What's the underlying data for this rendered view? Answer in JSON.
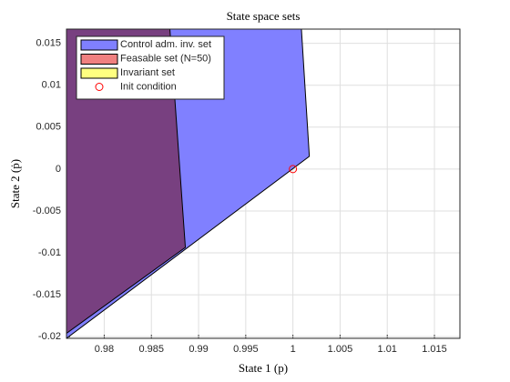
{
  "chart_data": {
    "type": "polygon",
    "title": "State space sets",
    "xlabel": "State 1 (p)",
    "ylabel": "State 2 (ṗ)",
    "xlim": [
      0.976,
      1.0177
    ],
    "ylim": [
      -0.0202,
      0.0167
    ],
    "xticks": [
      0.98,
      0.985,
      0.99,
      0.995,
      1,
      1.005,
      1.01,
      1.015
    ],
    "yticks": [
      -0.02,
      -0.015,
      -0.01,
      -0.005,
      0,
      0.005,
      0.01,
      0.015
    ],
    "grid": true,
    "legend": "upper left",
    "series": [
      {
        "name": "Control adm. inv. set",
        "color": "#8080ff",
        "x": [
          0.976,
          1.0009,
          1.00174,
          0.976
        ],
        "y": [
          0.0167,
          0.0167,
          0.00152,
          -0.0202
        ]
      },
      {
        "name": "Feasable set (N=50)",
        "color": "#f08080",
        "x": [
          0.976,
          0.98696,
          0.9886,
          0.976
        ],
        "y": [
          0.0167,
          0.0167,
          -0.00935,
          -0.0196
        ]
      },
      {
        "name": "Invariant set",
        "color": "#ffff80",
        "x": [],
        "y": []
      }
    ],
    "points": {
      "name": "Init condition",
      "color": "#ff0000",
      "x": [
        1
      ],
      "y": [
        0
      ]
    }
  }
}
